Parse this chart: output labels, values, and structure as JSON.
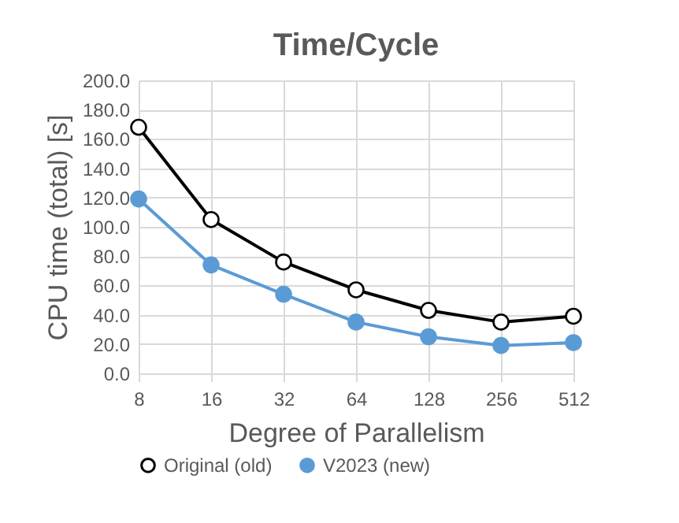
{
  "chart_data": {
    "type": "line",
    "title": "Time/Cycle",
    "xlabel": "Degree of Parallelism",
    "ylabel": "CPU time (total) [s]",
    "categories": [
      "8",
      "16",
      "32",
      "64",
      "128",
      "256",
      "512"
    ],
    "series": [
      {
        "name": "Original (old)",
        "color": "#000000",
        "values": [
          168,
          105,
          76,
          57,
          43,
          35,
          39
        ]
      },
      {
        "name": "V2023 (new)",
        "color": "#5b9bd5",
        "values": [
          119,
          74,
          54,
          35,
          25,
          19,
          21
        ]
      }
    ],
    "ylim": [
      0,
      200
    ],
    "yticks": [
      {
        "value": 0,
        "label": "0.0"
      },
      {
        "value": 20,
        "label": "20.0"
      },
      {
        "value": 40,
        "label": "40.0"
      },
      {
        "value": 60,
        "label": "60.0"
      },
      {
        "value": 80,
        "label": "80.0"
      },
      {
        "value": 100,
        "label": "100.0"
      },
      {
        "value": 120,
        "label": "120.0"
      },
      {
        "value": 140,
        "label": "140.0"
      },
      {
        "value": 160,
        "label": "160.0"
      },
      {
        "value": 180,
        "label": "180.0"
      },
      {
        "value": 200,
        "label": "200.0"
      }
    ],
    "grid": true,
    "legend": "bottom",
    "marker": "circle",
    "line_style": "solid"
  }
}
